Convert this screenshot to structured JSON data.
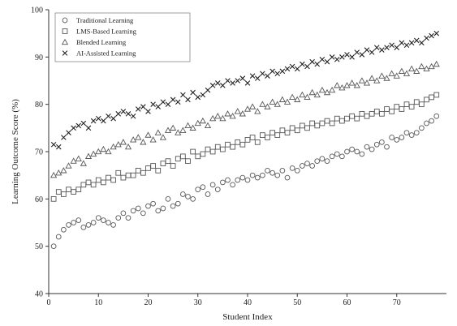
{
  "chart_data": {
    "type": "scatter",
    "xlabel": "Student Index",
    "ylabel": "Learning Outcome Score (%)",
    "xlim": [
      0,
      80
    ],
    "ylim": [
      40,
      100
    ],
    "xticks": [
      0,
      10,
      20,
      30,
      40,
      50,
      60,
      70
    ],
    "yticks": [
      40,
      50,
      60,
      70,
      80,
      90,
      100
    ],
    "legend_position": "top-left",
    "grid": false,
    "series": [
      {
        "name": "Traditional Learning",
        "marker": "circle",
        "color": "#555555",
        "x": [
          1,
          2,
          3,
          4,
          5,
          6,
          7,
          8,
          9,
          10,
          11,
          12,
          13,
          14,
          15,
          16,
          17,
          18,
          19,
          20,
          21,
          22,
          23,
          24,
          25,
          26,
          27,
          28,
          29,
          30,
          31,
          32,
          33,
          34,
          35,
          36,
          37,
          38,
          39,
          40,
          41,
          42,
          43,
          44,
          45,
          46,
          47,
          48,
          49,
          50,
          51,
          52,
          53,
          54,
          55,
          56,
          57,
          58,
          59,
          60,
          61,
          62,
          63,
          64,
          65,
          66,
          67,
          68,
          69,
          70,
          71,
          72,
          73,
          74,
          75,
          76,
          77,
          78
        ],
        "y": [
          50,
          52,
          53.5,
          54.5,
          55,
          55.5,
          54,
          54.5,
          55,
          56,
          55.5,
          55,
          54.5,
          56,
          57,
          56,
          57.5,
          58,
          57,
          58.5,
          59,
          57.5,
          58,
          60,
          58.5,
          59,
          61,
          60.5,
          60,
          62,
          62.5,
          61,
          63,
          62,
          63.5,
          64,
          63,
          64,
          64.5,
          64,
          65,
          64.5,
          65,
          66,
          65.5,
          65,
          66,
          64.5,
          66.5,
          66,
          67,
          67.5,
          67,
          68,
          68.5,
          68,
          69,
          69.5,
          69,
          70,
          70.5,
          70,
          69.5,
          71,
          70.5,
          71.5,
          72,
          71,
          73,
          72.5,
          73,
          74,
          73.5,
          74,
          75,
          76,
          76.5,
          77.5
        ]
      },
      {
        "name": "LMS-Based Learning",
        "marker": "square",
        "color": "#555555",
        "x": [
          1,
          2,
          3,
          4,
          5,
          6,
          7,
          8,
          9,
          10,
          11,
          12,
          13,
          14,
          15,
          16,
          17,
          18,
          19,
          20,
          21,
          22,
          23,
          24,
          25,
          26,
          27,
          28,
          29,
          30,
          31,
          32,
          33,
          34,
          35,
          36,
          37,
          38,
          39,
          40,
          41,
          42,
          43,
          44,
          45,
          46,
          47,
          48,
          49,
          50,
          51,
          52,
          53,
          54,
          55,
          56,
          57,
          58,
          59,
          60,
          61,
          62,
          63,
          64,
          65,
          66,
          67,
          68,
          69,
          70,
          71,
          72,
          73,
          74,
          75,
          76,
          77,
          78
        ],
        "y": [
          60,
          61.5,
          61,
          62,
          61.5,
          62,
          63,
          63.5,
          63,
          64,
          63.5,
          64.5,
          64,
          65.5,
          64.5,
          65,
          65,
          66,
          65.5,
          66.5,
          67,
          66,
          67.5,
          68,
          67,
          68.5,
          69,
          68,
          70,
          69,
          69.5,
          70.5,
          70,
          71,
          70.5,
          71.5,
          71,
          72,
          71.5,
          72.5,
          73,
          72,
          73.5,
          73,
          74,
          73.5,
          74.5,
          74,
          75,
          74.5,
          75.5,
          75,
          76,
          75.5,
          76,
          76.5,
          76,
          77,
          76.5,
          77,
          77.5,
          77,
          78,
          77.5,
          78,
          78.5,
          78,
          79,
          78.5,
          79.5,
          79,
          80,
          79.5,
          80.5,
          80,
          81,
          81.5,
          82
        ]
      },
      {
        "name": "Blended Learning",
        "marker": "triangle",
        "color": "#555555",
        "x": [
          1,
          2,
          3,
          4,
          5,
          6,
          7,
          8,
          9,
          10,
          11,
          12,
          13,
          14,
          15,
          16,
          17,
          18,
          19,
          20,
          21,
          22,
          23,
          24,
          25,
          26,
          27,
          28,
          29,
          30,
          31,
          32,
          33,
          34,
          35,
          36,
          37,
          38,
          39,
          40,
          41,
          42,
          43,
          44,
          45,
          46,
          47,
          48,
          49,
          50,
          51,
          52,
          53,
          54,
          55,
          56,
          57,
          58,
          59,
          60,
          61,
          62,
          63,
          64,
          65,
          66,
          67,
          68,
          69,
          70,
          71,
          72,
          73,
          74,
          75,
          76,
          77,
          78
        ],
        "y": [
          65,
          65.5,
          66,
          67,
          68,
          68.5,
          67.5,
          69,
          69.5,
          70,
          70.5,
          70,
          71,
          71.5,
          72,
          71,
          72.5,
          73,
          72,
          73.5,
          72.5,
          74,
          73,
          74.5,
          75,
          74,
          74.5,
          75.5,
          75,
          76,
          76.5,
          75.5,
          77,
          77.5,
          77,
          78,
          77.5,
          78.5,
          78,
          79,
          79.5,
          78.5,
          80,
          79.5,
          80.5,
          80,
          81,
          80.5,
          81.5,
          81,
          82,
          81.5,
          82.5,
          82,
          83,
          82.5,
          83,
          84,
          83.5,
          84,
          84.5,
          84,
          85,
          84.5,
          85.5,
          85,
          86,
          85.5,
          86.5,
          86,
          87,
          86.5,
          87.5,
          87,
          88,
          87.5,
          88,
          88.5
        ]
      },
      {
        "name": "AI-Assisted Learning",
        "marker": "x",
        "color": "#222222",
        "x": [
          1,
          2,
          3,
          4,
          5,
          6,
          7,
          8,
          9,
          10,
          11,
          12,
          13,
          14,
          15,
          16,
          17,
          18,
          19,
          20,
          21,
          22,
          23,
          24,
          25,
          26,
          27,
          28,
          29,
          30,
          31,
          32,
          33,
          34,
          35,
          36,
          37,
          38,
          39,
          40,
          41,
          42,
          43,
          44,
          45,
          46,
          47,
          48,
          49,
          50,
          51,
          52,
          53,
          54,
          55,
          56,
          57,
          58,
          59,
          60,
          61,
          62,
          63,
          64,
          65,
          66,
          67,
          68,
          69,
          70,
          71,
          72,
          73,
          74,
          75,
          76,
          77,
          78
        ],
        "y": [
          71.5,
          71,
          73,
          74,
          75,
          75.5,
          76,
          75,
          76.5,
          77,
          76.5,
          77.5,
          77,
          78,
          78.5,
          78,
          77.5,
          79,
          79.5,
          78.5,
          80,
          79.5,
          80.5,
          80,
          81,
          80.5,
          82,
          81,
          82.5,
          81.5,
          82,
          83,
          84,
          84.5,
          84,
          85,
          84.5,
          85,
          85.5,
          84.5,
          86,
          85.5,
          86.5,
          86,
          87,
          86.5,
          87,
          87.5,
          88,
          87.5,
          88.5,
          88,
          89,
          88.5,
          89.5,
          89,
          90,
          89.5,
          90,
          90.5,
          90,
          91,
          90.5,
          91.5,
          91,
          92,
          91.5,
          92,
          92.5,
          92,
          93,
          92.5,
          93,
          93.5,
          93,
          94,
          94.5,
          95
        ]
      }
    ]
  }
}
